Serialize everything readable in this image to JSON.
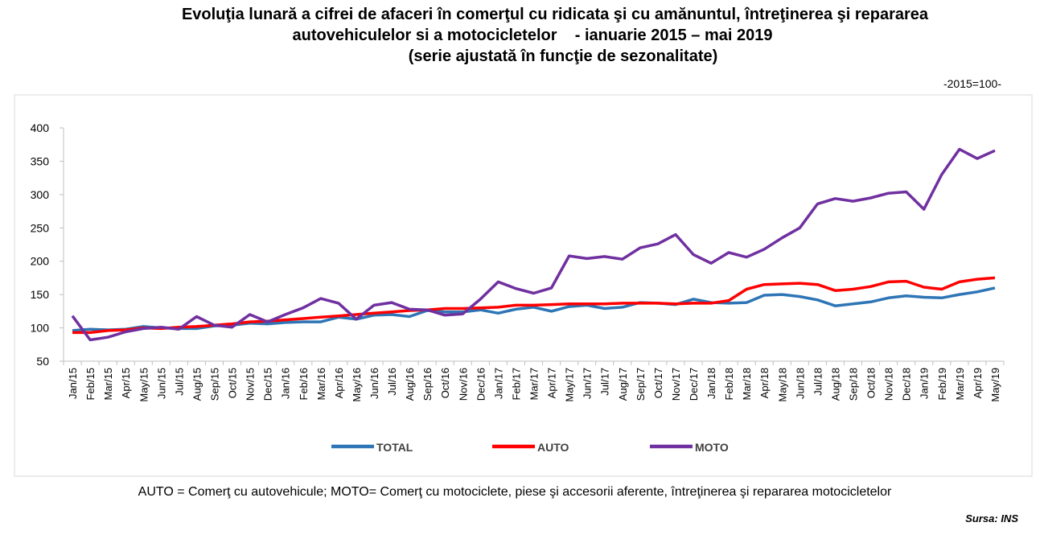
{
  "chart_data": {
    "type": "line",
    "title": [
      "Evoluţia lunară a cifrei de afaceri în comerţul cu ridicata şi cu amănuntul, întreţinerea şi repararea",
      "autovehiculelor si a motocicletelor    - ianuarie 2015 – mai 2019",
      "(serie ajustată în funcţie de sezonalitate)"
    ],
    "unit_note": "-2015=100-",
    "footnote": "AUTO = Comerţ cu autovehicule; MOTO= Comerţ cu motociclete, piese şi accesorii aferente, întreţinerea şi repararea motocicletelor",
    "source": "Sursa: INS",
    "categories": [
      "Jan/15",
      "Feb/15",
      "Mar/15",
      "Apr/15",
      "May/15",
      "Jun/15",
      "Jul/15",
      "Aug/15",
      "Sep/15",
      "Oct/15",
      "Nov/15",
      "Dec/15",
      "Jan/16",
      "Feb/16",
      "Mar/16",
      "Apr/16",
      "May/16",
      "Jun/16",
      "Jul/16",
      "Aug/16",
      "Sep/16",
      "Oct/16",
      "Nov/16",
      "Dec/16",
      "Jan/17",
      "Feb/17",
      "Mar/17",
      "Apr/17",
      "May/17",
      "Jun/17",
      "Jul/17",
      "Aug/17",
      "Sep/17",
      "Oct/17",
      "Nov/17",
      "Dec/17",
      "Jan/18",
      "Feb/18",
      "Mar/18",
      "Apr/18",
      "May/18",
      "Jun/18",
      "Jul/18",
      "Aug/18",
      "Sep/18",
      "Oct/18",
      "Nov/18",
      "Dec/18",
      "Jan/19",
      "Feb/19",
      "Mar/19",
      "Apr/19",
      "May/19"
    ],
    "series": [
      {
        "name": "TOTAL",
        "color": "#2e75b6",
        "values": [
          96,
          98,
          97,
          98,
          102,
          100,
          99,
          99,
          103,
          104,
          107,
          106,
          108,
          109,
          109,
          116,
          113,
          119,
          120,
          117,
          126,
          124,
          124,
          127,
          122,
          128,
          131,
          125,
          132,
          134,
          129,
          131,
          138,
          137,
          135,
          143,
          138,
          137,
          138,
          149,
          150,
          147,
          142,
          133,
          136,
          139,
          145,
          148,
          146,
          145,
          150,
          154,
          160
        ]
      },
      {
        "name": "AUTO",
        "color": "#ff0000",
        "values": [
          93,
          93,
          96,
          97,
          100,
          99,
          101,
          102,
          104,
          106,
          109,
          110,
          112,
          114,
          116,
          118,
          120,
          122,
          124,
          126,
          127,
          129,
          129,
          130,
          131,
          134,
          134,
          135,
          136,
          136,
          136,
          137,
          137,
          137,
          136,
          137,
          137,
          141,
          158,
          165,
          166,
          167,
          165,
          156,
          158,
          162,
          169,
          170,
          161,
          158,
          169,
          173,
          175
        ]
      },
      {
        "name": "MOTO",
        "color": "#7030a0",
        "values": [
          118,
          82,
          86,
          94,
          99,
          101,
          98,
          117,
          104,
          101,
          120,
          109,
          120,
          130,
          144,
          137,
          113,
          134,
          138,
          128,
          127,
          119,
          121,
          143,
          169,
          159,
          152,
          160,
          208,
          204,
          207,
          203,
          220,
          226,
          240,
          210,
          197,
          213,
          206,
          218,
          235,
          250,
          286,
          294,
          290,
          295,
          302,
          304,
          278,
          330,
          368,
          354,
          366
        ]
      }
    ],
    "ylim": [
      50,
      400
    ],
    "yticks": [
      50,
      100,
      150,
      200,
      250,
      300,
      350,
      400
    ],
    "grid": false,
    "legend": "bottom"
  }
}
